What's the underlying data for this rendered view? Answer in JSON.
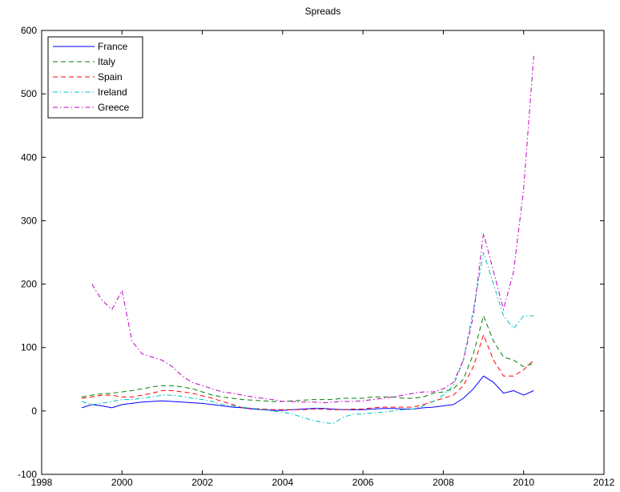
{
  "chart_data": {
    "type": "line",
    "title": "Spreads",
    "x": [
      1999,
      1999.25,
      1999.5,
      1999.75,
      2000,
      2000.25,
      2000.5,
      2000.75,
      2001,
      2001.25,
      2001.5,
      2001.75,
      2002,
      2002.25,
      2002.5,
      2002.75,
      2003,
      2003.25,
      2003.5,
      2003.75,
      2004,
      2004.25,
      2004.5,
      2004.75,
      2005,
      2005.25,
      2005.5,
      2005.75,
      2006,
      2006.25,
      2006.5,
      2006.75,
      2007,
      2007.25,
      2007.5,
      2007.75,
      2008,
      2008.25,
      2008.5,
      2008.75,
      2009,
      2009.25,
      2009.5,
      2009.75,
      2010,
      2010.25
    ],
    "series": [
      {
        "name": "France",
        "color": "#0000ff",
        "linestyle": "-",
        "values": [
          5,
          10,
          8,
          5,
          10,
          12,
          14,
          15,
          16,
          15,
          14,
          13,
          12,
          10,
          8,
          6,
          5,
          3,
          2,
          1,
          1,
          2,
          3,
          4,
          4,
          3,
          2,
          2,
          2,
          3,
          4,
          4,
          3,
          3,
          5,
          6,
          8,
          10,
          20,
          35,
          55,
          45,
          28,
          32,
          25,
          32
        ]
      },
      {
        "name": "Italy",
        "color": "#008000",
        "linestyle": "--",
        "values": [
          22,
          25,
          27,
          28,
          30,
          32,
          35,
          38,
          40,
          40,
          38,
          35,
          30,
          25,
          22,
          20,
          18,
          17,
          16,
          15,
          15,
          16,
          17,
          18,
          18,
          18,
          20,
          20,
          20,
          22,
          22,
          22,
          20,
          20,
          22,
          28,
          30,
          35,
          50,
          90,
          150,
          110,
          85,
          80,
          70,
          75
        ]
      },
      {
        "name": "Spain",
        "color": "#ff0000",
        "linestyle": "--",
        "values": [
          20,
          22,
          25,
          25,
          22,
          22,
          25,
          28,
          32,
          32,
          30,
          28,
          24,
          20,
          15,
          10,
          5,
          4,
          3,
          2,
          2,
          2,
          2,
          3,
          3,
          2,
          2,
          3,
          3,
          5,
          6,
          6,
          6,
          6,
          10,
          15,
          20,
          25,
          40,
          70,
          120,
          80,
          55,
          55,
          65,
          80
        ]
      },
      {
        "name": "Ireland",
        "color": "#00bfbf",
        "linestyle": "-.",
        "values": [
          15,
          10,
          12,
          15,
          18,
          18,
          20,
          22,
          25,
          25,
          23,
          20,
          18,
          15,
          10,
          8,
          6,
          4,
          2,
          0,
          -2,
          -5,
          -10,
          -15,
          -18,
          -20,
          -10,
          -5,
          -5,
          -3,
          -2,
          0,
          2,
          3,
          8,
          15,
          25,
          40,
          80,
          160,
          250,
          200,
          150,
          130,
          150,
          150
        ]
      },
      {
        "name": "Greece",
        "color": "#bf00bf",
        "linestyle": "-.",
        "values": [
          null,
          200,
          175,
          160,
          190,
          110,
          90,
          85,
          80,
          70,
          55,
          45,
          40,
          35,
          30,
          28,
          25,
          22,
          20,
          18,
          15,
          15,
          14,
          14,
          13,
          14,
          15,
          15,
          16,
          18,
          20,
          22,
          25,
          28,
          30,
          30,
          35,
          45,
          80,
          150,
          280,
          220,
          160,
          220,
          350,
          560
        ]
      }
    ],
    "xlim": [
      1998,
      2012
    ],
    "xticks": [
      1998,
      2000,
      2002,
      2004,
      2006,
      2008,
      2010,
      2012
    ],
    "ylim": [
      -100,
      600
    ],
    "yticks": [
      -100,
      0,
      100,
      200,
      300,
      400,
      500,
      600
    ],
    "legend": "northwest"
  }
}
